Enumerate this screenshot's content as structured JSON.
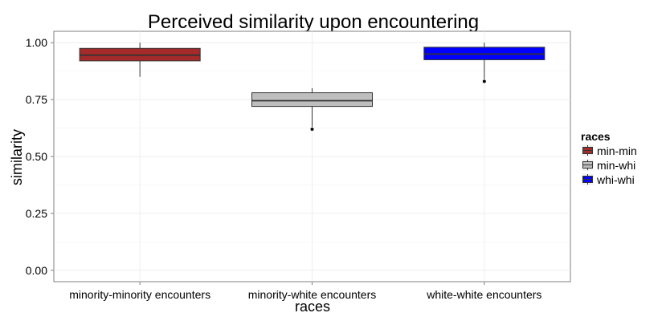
{
  "chart_data": {
    "type": "box",
    "title": "Perceived similarity upon encountering",
    "xlabel": "races",
    "ylabel": "similarity",
    "ylim": [
      -0.05,
      1.05
    ],
    "yticks": [
      0.0,
      0.25,
      0.5,
      0.75,
      1.0
    ],
    "ytick_labels": [
      "0.00",
      "0.25",
      "0.50",
      "0.75",
      "1.00"
    ],
    "grid": true,
    "legend_position": "right",
    "legend_title": "races",
    "categories": [
      "minority-minority encounters",
      "minority-white encounters",
      "white-white encounters"
    ],
    "boxes": [
      {
        "name": "min-min",
        "color": "#a52a2a",
        "lower_whisker": 0.85,
        "q1": 0.92,
        "median": 0.945,
        "q3": 0.975,
        "upper_whisker": 1.0,
        "outliers": []
      },
      {
        "name": "min-whi",
        "color": "#bebebe",
        "lower_whisker": 0.63,
        "q1": 0.72,
        "median": 0.745,
        "q3": 0.78,
        "upper_whisker": 0.8,
        "outliers": [
          0.62
        ]
      },
      {
        "name": "whi-whi",
        "color": "#0000ff",
        "lower_whisker": 0.84,
        "q1": 0.925,
        "median": 0.95,
        "q3": 0.98,
        "upper_whisker": 1.0,
        "outliers": [
          0.83
        ]
      }
    ]
  }
}
